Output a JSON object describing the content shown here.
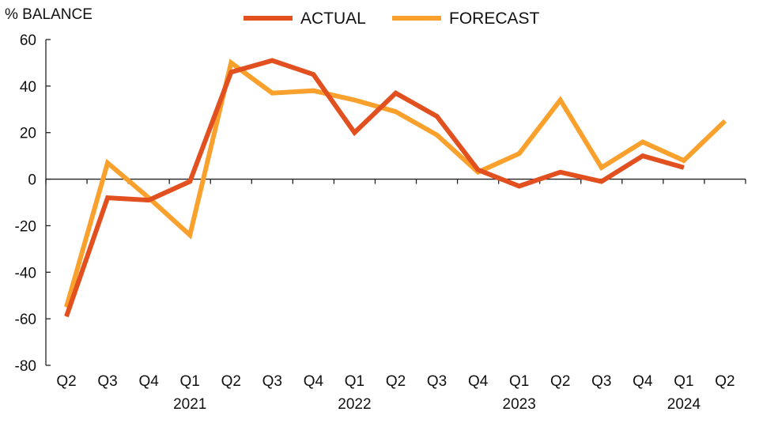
{
  "chart_data": {
    "type": "line",
    "ylabel": "% BALANCE",
    "ylim": [
      -80,
      60
    ],
    "yticks": [
      60,
      40,
      20,
      0,
      -20,
      -40,
      -60,
      -80
    ],
    "categories": [
      "Q2",
      "Q3",
      "Q4",
      "Q1",
      "Q2",
      "Q3",
      "Q4",
      "Q1",
      "Q2",
      "Q3",
      "Q4",
      "Q1",
      "Q2",
      "Q3",
      "Q4",
      "Q1",
      "Q2"
    ],
    "year_labels": [
      {
        "label": "2021",
        "category_index": 3
      },
      {
        "label": "2022",
        "category_index": 7
      },
      {
        "label": "2023",
        "category_index": 11
      },
      {
        "label": "2024",
        "category_index": 15
      }
    ],
    "legend_position": "top",
    "grid": false,
    "series": [
      {
        "name": "ACTUAL",
        "color": "#E2501F",
        "values": [
          -59,
          -8,
          -9,
          -1,
          46,
          51,
          45,
          20,
          37,
          27,
          4,
          -3,
          3,
          -1,
          10,
          5,
          null
        ]
      },
      {
        "name": "FORECAST",
        "color": "#F9A12C",
        "values": [
          -55,
          7,
          -8,
          -24,
          50,
          37,
          38,
          34,
          29,
          19,
          3,
          11,
          34,
          5,
          16,
          8,
          25
        ]
      }
    ]
  }
}
